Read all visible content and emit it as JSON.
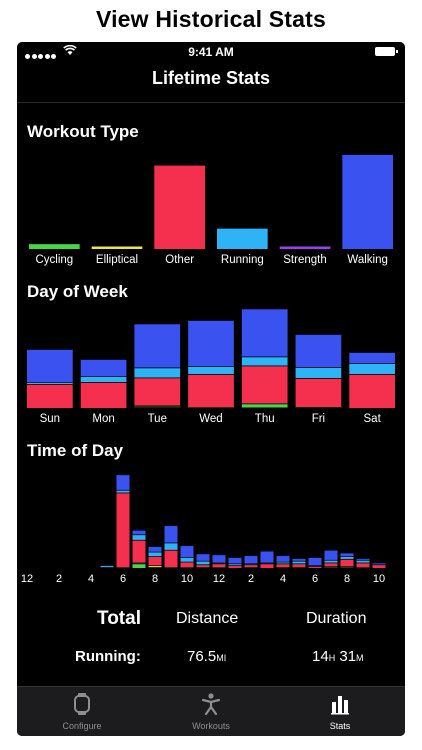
{
  "headline": "View Historical Stats",
  "status_bar": {
    "time": "9:41 AM"
  },
  "nav": {
    "title": "Lifetime Stats"
  },
  "colors": {
    "background": "#000000",
    "walking": "#3a53f0",
    "running": "#2fb3f7",
    "other": "#f5304f",
    "cycling": "#46d64a",
    "elliptical": "#e4e64a",
    "strength": "#9b3ff5"
  },
  "sections": {
    "workout_type": "Workout Type",
    "day_of_week": "Day of Week",
    "time_of_day": "Time of Day"
  },
  "chart_data": [
    {
      "type": "bar",
      "title": "Workout Type",
      "categories": [
        "Cycling",
        "Elliptical",
        "Other",
        "Running",
        "Strength",
        "Walking"
      ],
      "values": [
        5,
        2,
        86,
        21,
        1,
        97
      ],
      "ylim": [
        0,
        100
      ],
      "grid": false
    },
    {
      "type": "bar",
      "stacked": true,
      "title": "Day of Week",
      "categories": [
        "Sun",
        "Mon",
        "Tue",
        "Wed",
        "Thu",
        "Fri",
        "Sat"
      ],
      "stack_order": [
        "Strength",
        "Cycling",
        "Elliptical",
        "Other",
        "Running",
        "Walking"
      ],
      "series": [
        {
          "name": "Strength",
          "values": [
            0,
            0,
            0.5,
            0,
            0.5,
            0,
            0
          ]
        },
        {
          "name": "Cycling",
          "values": [
            0,
            0,
            1,
            0,
            4,
            1,
            0
          ]
        },
        {
          "name": "Elliptical",
          "values": [
            0,
            0,
            1,
            1,
            0,
            0,
            0
          ]
        },
        {
          "name": "Other",
          "values": [
            24,
            26,
            28,
            33,
            38,
            29,
            34
          ]
        },
        {
          "name": "Running",
          "values": [
            2,
            6,
            10,
            8,
            9,
            11,
            11
          ]
        },
        {
          "name": "Walking",
          "values": [
            33,
            17,
            44,
            46,
            48,
            33,
            11
          ]
        }
      ],
      "ylim": [
        0,
        100
      ],
      "grid": false
    },
    {
      "type": "bar",
      "stacked": true,
      "title": "Time of Day",
      "categories": [
        "12",
        "1",
        "2",
        "3",
        "4",
        "5",
        "6",
        "7",
        "8",
        "9",
        "10",
        "11",
        "12",
        "1",
        "2",
        "3",
        "4",
        "5",
        "6",
        "7",
        "8",
        "9",
        "10",
        "11"
      ],
      "tick_labels": [
        "12",
        "2",
        "4",
        "6",
        "8",
        "10",
        "12",
        "2",
        "4",
        "6",
        "8",
        "10"
      ],
      "stack_order": [
        "Cycling",
        "Elliptical",
        "Other",
        "Running",
        "Walking"
      ],
      "series": [
        {
          "name": "Cycling",
          "values": [
            0,
            0,
            0,
            0,
            0,
            0,
            0,
            5,
            1,
            0,
            0,
            1,
            0,
            0,
            1,
            0,
            1,
            1,
            0,
            1,
            1,
            0,
            0,
            0
          ]
        },
        {
          "name": "Elliptical",
          "values": [
            0,
            0,
            0,
            0,
            0,
            0,
            1,
            1,
            2,
            1,
            1,
            0,
            1,
            0,
            0,
            0,
            0,
            0,
            0,
            1,
            1,
            1,
            0,
            0
          ]
        },
        {
          "name": "Other",
          "values": [
            0,
            0,
            0,
            0,
            0,
            1,
            82,
            25,
            10,
            19,
            6,
            3,
            4,
            3,
            3,
            5,
            4,
            4,
            2,
            4,
            8,
            5,
            4,
            0
          ]
        },
        {
          "name": "Running",
          "values": [
            0,
            0,
            0,
            0,
            0,
            2,
            3,
            6,
            5,
            8,
            5,
            4,
            1,
            2,
            1,
            1,
            2,
            3,
            1,
            3,
            3,
            3,
            0,
            0
          ]
        },
        {
          "name": "Walking",
          "values": [
            0,
            0,
            0,
            0,
            0,
            1,
            17,
            5,
            6,
            19,
            13,
            8,
            9,
            7,
            9,
            13,
            7,
            3,
            9,
            11,
            4,
            2,
            2,
            0
          ]
        }
      ],
      "ylim": [
        0,
        110
      ],
      "grid": false
    }
  ],
  "totals": {
    "title": "Total",
    "col_distance": "Distance",
    "col_duration": "Duration",
    "row_label": "Running:",
    "distance_value": "76.5",
    "distance_unit": "MI",
    "duration_hours": "14",
    "duration_h_unit": "H",
    "duration_minutes": "31",
    "duration_m_unit": "M"
  },
  "tabs": [
    {
      "label": "Configure",
      "icon": "watch-icon",
      "active": false
    },
    {
      "label": "Workouts",
      "icon": "figure-icon",
      "active": false
    },
    {
      "label": "Stats",
      "icon": "bar-chart-icon",
      "active": true
    }
  ]
}
